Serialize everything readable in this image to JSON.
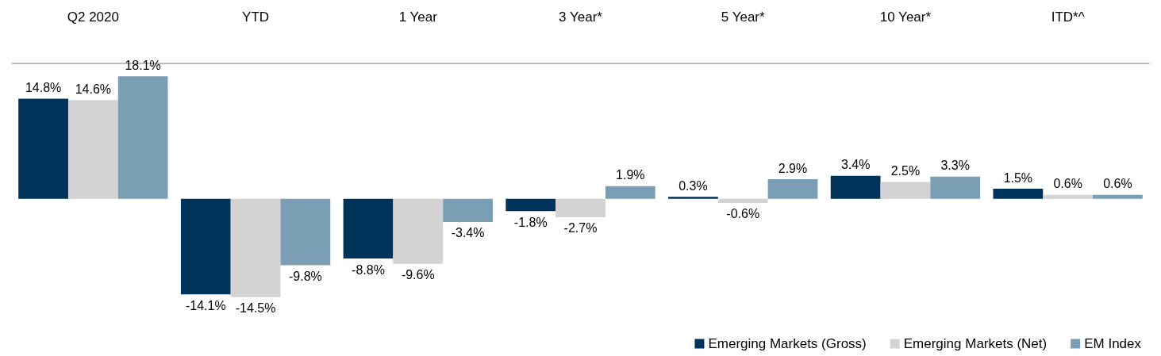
{
  "chart_data": {
    "type": "bar",
    "categories": [
      "Q2 2020",
      "YTD",
      "1 Year",
      "3 Year*",
      "5 Year*",
      "10 Year*",
      "ITD*^"
    ],
    "series": [
      {
        "name": "Emerging Markets (Gross)",
        "color": "#00335a",
        "values": [
          14.8,
          -14.1,
          -8.8,
          -1.8,
          0.3,
          3.4,
          1.5
        ],
        "value_labels": [
          "14.8%",
          "-14.1%",
          "-8.8%",
          "-1.8%",
          "0.3%",
          "3.4%",
          "1.5%"
        ]
      },
      {
        "name": "Emerging Markets (Net)",
        "color": "#d3d3d3",
        "values": [
          14.6,
          -14.5,
          -9.6,
          -2.7,
          -0.6,
          2.5,
          0.6
        ],
        "value_labels": [
          "14.6%",
          "-14.5%",
          "-9.6%",
          "-2.7%",
          "-0.6%",
          "2.5%",
          "0.6%"
        ]
      },
      {
        "name": "EM Index",
        "color": "#7a9fb5",
        "values": [
          18.1,
          -9.8,
          -3.4,
          1.9,
          2.9,
          3.3,
          0.6
        ],
        "value_labels": [
          "18.1%",
          "-9.8%",
          "-3.4%",
          "1.9%",
          "2.9%",
          "3.3%",
          "0.6%"
        ]
      }
    ],
    "legend": "bottom right",
    "grid": false
  }
}
